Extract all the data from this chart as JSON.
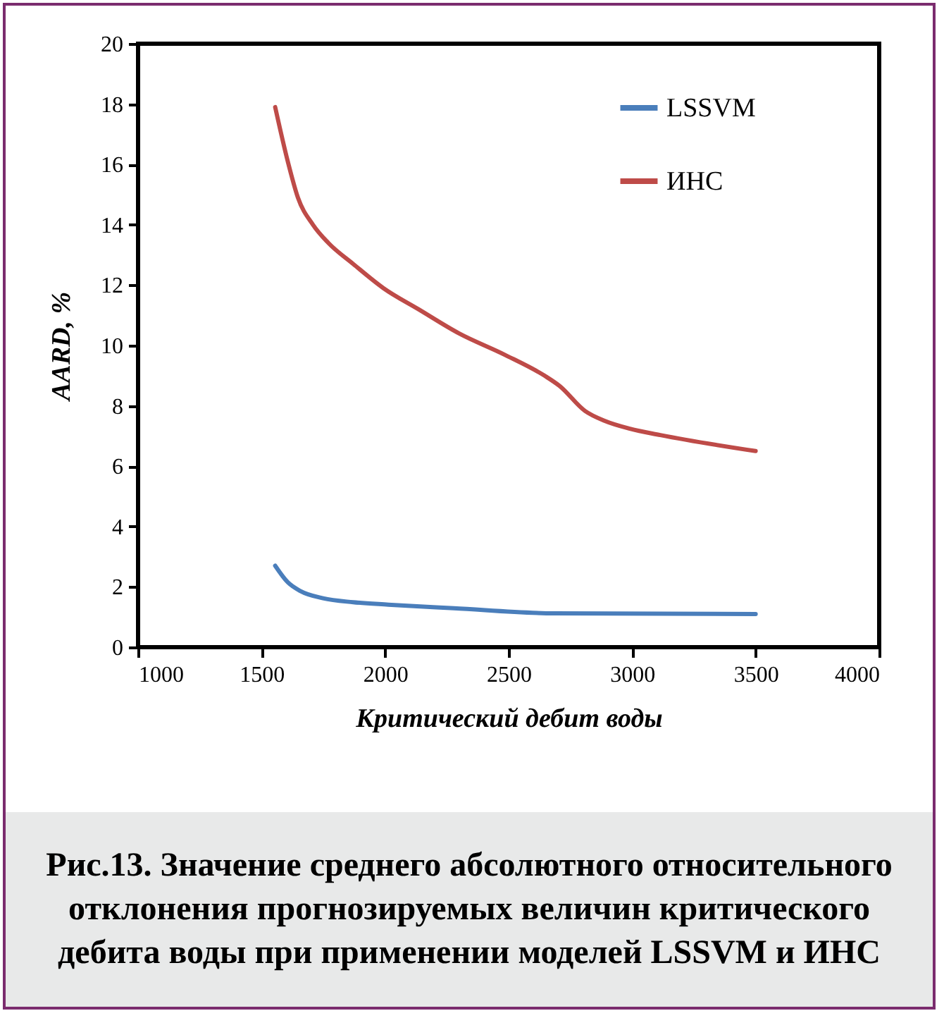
{
  "chart_data": {
    "type": "line",
    "title": "Рис.13. Значение среднего абсолютного относительного отклонения прогнозируемых величин критического дебита воды при применении моделей LSSVM и ИНС",
    "xlabel": "Критический  дебит воды",
    "ylabel": "AARD, %",
    "xlim": [
      1000,
      4000
    ],
    "xticks": [
      1000,
      1500,
      2000,
      2500,
      3000,
      3500,
      4000
    ],
    "ylim": [
      0,
      20
    ],
    "yticks": [
      0,
      2,
      4,
      6,
      8,
      10,
      12,
      14,
      16,
      18,
      20
    ],
    "grid": false,
    "legend": "top right",
    "marker": "none",
    "line_style": "solid",
    "series": [
      {
        "name": "LSSVM",
        "color": "#4a7ebb",
        "x": [
          1555,
          1606,
          1657,
          1749,
          1871,
          2013,
          2278,
          2686,
          3500
        ],
        "values": [
          2.7,
          2.15,
          1.86,
          1.62,
          1.49,
          1.41,
          1.29,
          1.12,
          1.1
        ]
      },
      {
        "name": "ИНС",
        "color": "#be4b48",
        "x": [
          1555,
          1606,
          1647,
          1708,
          1770,
          1871,
          1993,
          2135,
          2299,
          2482,
          2645,
          2706,
          2809,
          2889,
          2991,
          3114,
          3500
        ],
        "values": [
          17.9,
          16.1,
          14.9,
          14.0,
          13.4,
          12.7,
          11.9,
          11.2,
          10.4,
          9.7,
          9.0,
          8.66,
          7.83,
          7.5,
          7.24,
          7.03,
          6.5
        ]
      }
    ]
  }
}
